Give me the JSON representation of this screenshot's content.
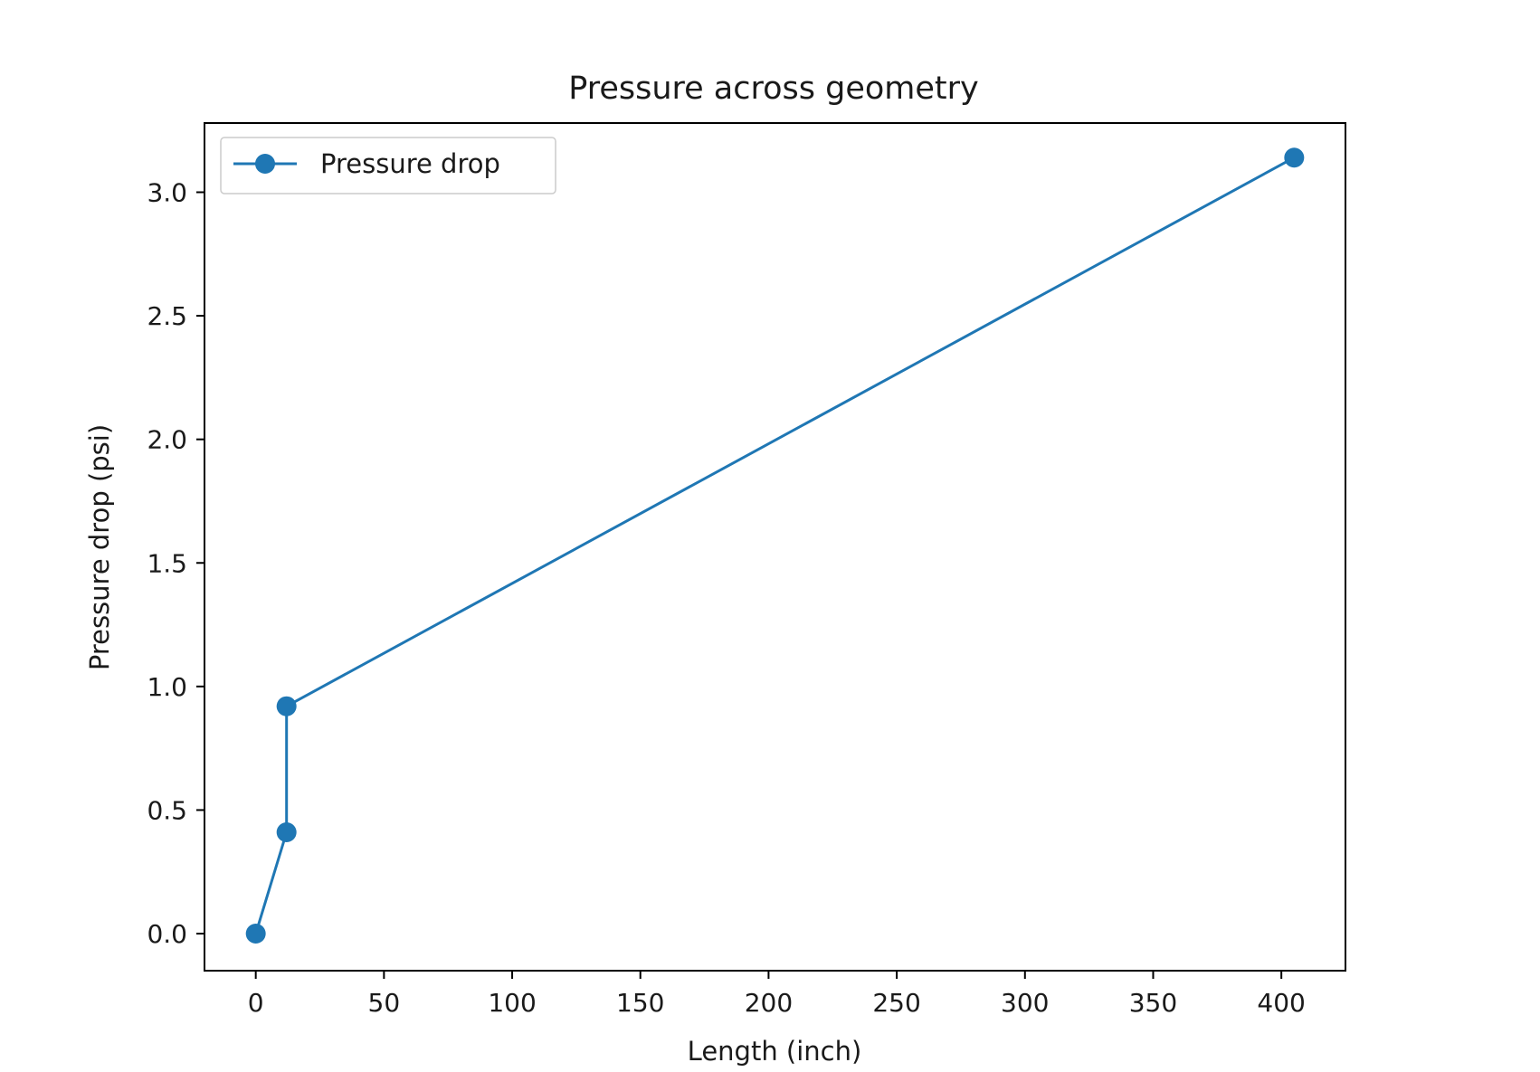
{
  "chart_data": {
    "type": "line",
    "title": "Pressure across geometry",
    "xlabel": "Length (inch)",
    "ylabel": "Pressure drop (psi)",
    "xlim": [
      -20,
      425
    ],
    "ylim": [
      -0.15,
      3.28
    ],
    "xticks": [
      0,
      50,
      100,
      150,
      200,
      250,
      300,
      350,
      400
    ],
    "xtick_labels": [
      "0",
      "50",
      "100",
      "150",
      "200",
      "250",
      "300",
      "350",
      "400"
    ],
    "yticks": [
      0.0,
      0.5,
      1.0,
      1.5,
      2.0,
      2.5,
      3.0
    ],
    "ytick_labels": [
      "0.0",
      "0.5",
      "1.0",
      "1.5",
      "2.0",
      "2.5",
      "3.0"
    ],
    "grid": false,
    "legend_position": "upper-left",
    "series": [
      {
        "name": "Pressure drop",
        "color": "#1f77b4",
        "marker": "circle",
        "x": [
          0,
          12,
          12,
          405
        ],
        "y": [
          0.0,
          0.41,
          0.92,
          3.14
        ]
      }
    ]
  }
}
